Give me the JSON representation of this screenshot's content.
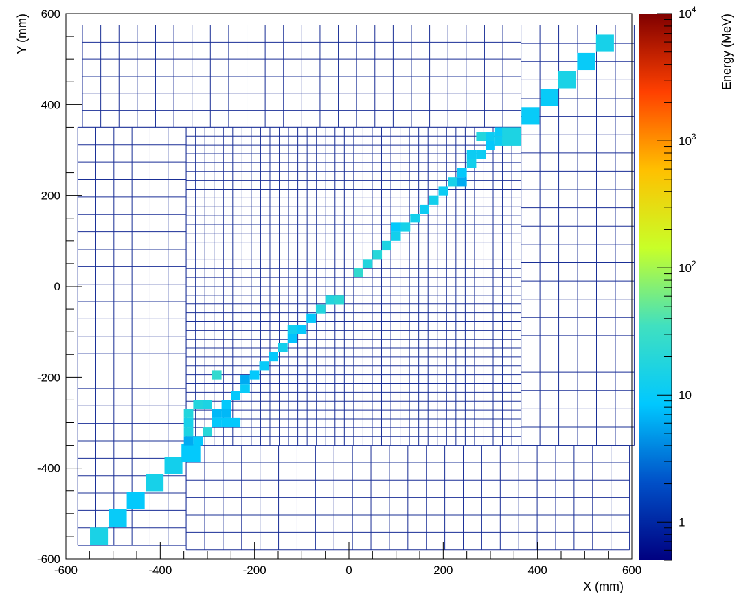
{
  "chart_data": {
    "type": "heatmap",
    "title": "",
    "xlabel": "X (mm)",
    "ylabel": "Y (mm)",
    "zlabel": "Energy (MeV)",
    "xlim": [
      -600,
      600
    ],
    "ylim": [
      -600,
      600
    ],
    "x_ticks": [
      "-600",
      "-400",
      "-200",
      "0",
      "200",
      "400",
      "600"
    ],
    "y_ticks": [
      "-600",
      "-400",
      "-200",
      "0",
      "200",
      "400",
      "600"
    ],
    "z_scale": "log",
    "zlim": [
      0.5,
      10000
    ],
    "z_ticks": [
      {
        "value": 1,
        "base": "1",
        "exp": ""
      },
      {
        "value": 10,
        "base": "10",
        "exp": ""
      },
      {
        "value": 100,
        "base": "10",
        "exp": "2"
      },
      {
        "value": 1000,
        "base": "10",
        "exp": "3"
      },
      {
        "value": 10000,
        "base": "10",
        "exp": "4"
      }
    ],
    "colormap": [
      "#000080",
      "#0050c8",
      "#00c8ff",
      "#40e0c0",
      "#c8ff28",
      "#ffc000",
      "#ff4000",
      "#800000"
    ],
    "grid_color": "#1a2f96",
    "grid_regions": [
      {
        "name": "outer-top",
        "xmin": -565,
        "xmax": 365,
        "ymin": 350,
        "ymax": 575,
        "nx": 24,
        "ny": 6
      },
      {
        "name": "outer-right",
        "xmin": 365,
        "xmax": 605,
        "ymin": -350,
        "ymax": 575,
        "nx": 6,
        "ny": 23
      },
      {
        "name": "outer-left",
        "xmin": -575,
        "xmax": -345,
        "ymin": -570,
        "ymax": 350,
        "nx": 6,
        "ny": 24
      },
      {
        "name": "outer-bottom",
        "xmin": -345,
        "xmax": 595,
        "ymin": -580,
        "ymax": -350,
        "nx": 24,
        "ny": 6
      },
      {
        "name": "inner",
        "xmin": -345,
        "xmax": 365,
        "ymin": -350,
        "ymax": 350,
        "nx": 36,
        "ny": 36
      }
    ],
    "hits": [
      {
        "x": -530,
        "y": -550,
        "w": 38,
        "h": 38,
        "e": 15
      },
      {
        "x": -490,
        "y": -510,
        "w": 38,
        "h": 38,
        "e": 10
      },
      {
        "x": -452,
        "y": -472,
        "w": 38,
        "h": 38,
        "e": 9
      },
      {
        "x": -412,
        "y": -432,
        "w": 38,
        "h": 38,
        "e": 14
      },
      {
        "x": -372,
        "y": -395,
        "w": 38,
        "h": 38,
        "e": 13
      },
      {
        "x": -335,
        "y": -367,
        "w": 40,
        "h": 40,
        "e": 9
      },
      {
        "x": -340,
        "y": -340,
        "w": 20,
        "h": 20,
        "e": 6
      },
      {
        "x": -320,
        "y": -340,
        "w": 20,
        "h": 20,
        "e": 9
      },
      {
        "x": -340,
        "y": -320,
        "w": 20,
        "h": 20,
        "e": 16
      },
      {
        "x": -340,
        "y": -300,
        "w": 20,
        "h": 20,
        "e": 14
      },
      {
        "x": -340,
        "y": -280,
        "w": 20,
        "h": 20,
        "e": 18
      },
      {
        "x": -320,
        "y": -260,
        "w": 20,
        "h": 20,
        "e": 18
      },
      {
        "x": -300,
        "y": -260,
        "w": 20,
        "h": 20,
        "e": 16
      },
      {
        "x": -300,
        "y": -320,
        "w": 20,
        "h": 20,
        "e": 20
      },
      {
        "x": -280,
        "y": -280,
        "w": 20,
        "h": 20,
        "e": 7
      },
      {
        "x": -280,
        "y": -300,
        "w": 20,
        "h": 20,
        "e": 9
      },
      {
        "x": -260,
        "y": -260,
        "w": 20,
        "h": 20,
        "e": 9
      },
      {
        "x": -260,
        "y": -280,
        "w": 20,
        "h": 20,
        "e": 7
      },
      {
        "x": -260,
        "y": -300,
        "w": 20,
        "h": 20,
        "e": 9
      },
      {
        "x": -240,
        "y": -300,
        "w": 20,
        "h": 20,
        "e": 9
      },
      {
        "x": -280,
        "y": -195,
        "w": 20,
        "h": 20,
        "e": 25
      },
      {
        "x": -240,
        "y": -240,
        "w": 20,
        "h": 20,
        "e": 9
      },
      {
        "x": -220,
        "y": -225,
        "w": 20,
        "h": 20,
        "e": 10
      },
      {
        "x": -220,
        "y": -205,
        "w": 20,
        "h": 20,
        "e": 6
      },
      {
        "x": -200,
        "y": -195,
        "w": 20,
        "h": 20,
        "e": 9
      },
      {
        "x": -180,
        "y": -175,
        "w": 20,
        "h": 20,
        "e": 10
      },
      {
        "x": -160,
        "y": -155,
        "w": 20,
        "h": 20,
        "e": 9
      },
      {
        "x": -140,
        "y": -135,
        "w": 20,
        "h": 20,
        "e": 13
      },
      {
        "x": -120,
        "y": -115,
        "w": 20,
        "h": 20,
        "e": 8
      },
      {
        "x": -120,
        "y": -95,
        "w": 20,
        "h": 20,
        "e": 12
      },
      {
        "x": -100,
        "y": -95,
        "w": 20,
        "h": 20,
        "e": 9
      },
      {
        "x": -80,
        "y": -70,
        "w": 20,
        "h": 20,
        "e": 9
      },
      {
        "x": -60,
        "y": -50,
        "w": 20,
        "h": 20,
        "e": 18
      },
      {
        "x": -40,
        "y": -30,
        "w": 20,
        "h": 20,
        "e": 18
      },
      {
        "x": -20,
        "y": -30,
        "w": 20,
        "h": 20,
        "e": 22
      },
      {
        "x": 20,
        "y": 30,
        "w": 20,
        "h": 20,
        "e": 25
      },
      {
        "x": 40,
        "y": 50,
        "w": 20,
        "h": 20,
        "e": 18
      },
      {
        "x": 60,
        "y": 70,
        "w": 20,
        "h": 20,
        "e": 20
      },
      {
        "x": 80,
        "y": 90,
        "w": 20,
        "h": 20,
        "e": 16
      },
      {
        "x": 100,
        "y": 110,
        "w": 20,
        "h": 20,
        "e": 13
      },
      {
        "x": 100,
        "y": 130,
        "w": 20,
        "h": 20,
        "e": 9
      },
      {
        "x": 120,
        "y": 130,
        "w": 20,
        "h": 20,
        "e": 14
      },
      {
        "x": 140,
        "y": 150,
        "w": 20,
        "h": 20,
        "e": 13
      },
      {
        "x": 160,
        "y": 170,
        "w": 20,
        "h": 20,
        "e": 11
      },
      {
        "x": 180,
        "y": 190,
        "w": 20,
        "h": 20,
        "e": 13
      },
      {
        "x": 200,
        "y": 210,
        "w": 20,
        "h": 20,
        "e": 11
      },
      {
        "x": 220,
        "y": 230,
        "w": 20,
        "h": 20,
        "e": 14
      },
      {
        "x": 240,
        "y": 230,
        "w": 20,
        "h": 20,
        "e": 6
      },
      {
        "x": 240,
        "y": 250,
        "w": 20,
        "h": 20,
        "e": 9
      },
      {
        "x": 260,
        "y": 270,
        "w": 20,
        "h": 20,
        "e": 13
      },
      {
        "x": 260,
        "y": 290,
        "w": 20,
        "h": 20,
        "e": 11
      },
      {
        "x": 280,
        "y": 290,
        "w": 20,
        "h": 20,
        "e": 11
      },
      {
        "x": 300,
        "y": 310,
        "w": 20,
        "h": 20,
        "e": 9
      },
      {
        "x": 300,
        "y": 330,
        "w": 20,
        "h": 20,
        "e": 11
      },
      {
        "x": 280,
        "y": 330,
        "w": 20,
        "h": 20,
        "e": 18
      },
      {
        "x": 320,
        "y": 340,
        "w": 20,
        "h": 20,
        "e": 10
      },
      {
        "x": 320,
        "y": 320,
        "w": 20,
        "h": 20,
        "e": 11
      },
      {
        "x": 345,
        "y": 330,
        "w": 40,
        "h": 40,
        "e": 16
      },
      {
        "x": 385,
        "y": 375,
        "w": 38,
        "h": 38,
        "e": 10
      },
      {
        "x": 425,
        "y": 415,
        "w": 38,
        "h": 38,
        "e": 10
      },
      {
        "x": 463,
        "y": 455,
        "w": 38,
        "h": 38,
        "e": 15
      },
      {
        "x": 503,
        "y": 495,
        "w": 38,
        "h": 38,
        "e": 10
      },
      {
        "x": 543,
        "y": 535,
        "w": 38,
        "h": 38,
        "e": 14
      }
    ]
  }
}
